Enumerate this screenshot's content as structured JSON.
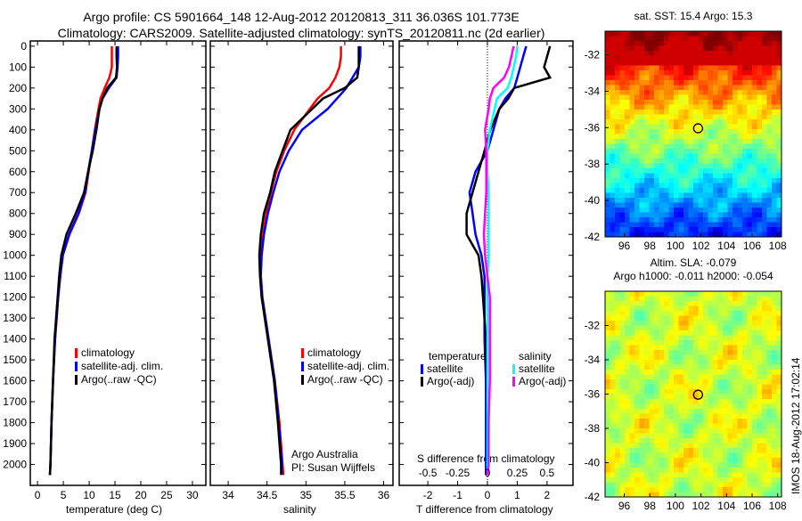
{
  "title": {
    "line1": "Argo profile: CS 5901664_148 12-Aug-2012 20120813_311 36.036S 101.773E",
    "line2": "Climatology: CARS2009. Satellite-adjusted climatology: synTS_20120811.nc (2d earlier)"
  },
  "colors": {
    "climatology": "#ff0000",
    "satellite": "#0000ff",
    "argo": "#000000",
    "sal_satellite": "#00ffff",
    "sal_argo": "#ff00ff"
  },
  "chart_data": [
    {
      "type": "line",
      "xlabel": "temperature (deg C)",
      "ylabel": "",
      "xticks": [
        0,
        5,
        10,
        15,
        20,
        25,
        30
      ],
      "yticks": [
        0,
        100,
        200,
        300,
        400,
        500,
        600,
        700,
        800,
        900,
        1000,
        1100,
        1200,
        1300,
        1400,
        1500,
        1600,
        1700,
        1800,
        1900,
        2000
      ],
      "xlim": [
        -1.4,
        32.6
      ],
      "ylim": [
        2100,
        -25
      ],
      "legend": [
        "climatology",
        "satellite-adj. clim.",
        "Argo(..raw -QC)"
      ],
      "legend_placement": "lower-right",
      "depth": [
        0,
        50,
        100,
        150,
        200,
        250,
        300,
        400,
        500,
        600,
        700,
        800,
        900,
        1000,
        1100,
        1200,
        1400,
        1600,
        1800,
        2000,
        2050
      ],
      "series": [
        {
          "name": "climatology",
          "values": [
            14.4,
            14.4,
            14.4,
            13.9,
            13.0,
            12.2,
            11.8,
            11.1,
            10.5,
            9.9,
            9.3,
            8.0,
            6.2,
            4.9,
            4.4,
            4.0,
            3.4,
            3.0,
            2.7,
            2.5,
            2.4
          ]
        },
        {
          "name": "satellite-adj. clim.",
          "values": [
            15.6,
            15.6,
            15.5,
            15.3,
            13.8,
            12.6,
            12.0,
            11.2,
            10.5,
            9.8,
            9.2,
            7.9,
            6.1,
            4.9,
            4.4,
            4.0,
            3.4,
            3.0,
            2.7,
            2.5,
            2.4
          ]
        },
        {
          "name": "Argo(..raw -QC)",
          "values": [
            15.3,
            15.3,
            15.4,
            15.2,
            13.5,
            12.6,
            12.0,
            11.4,
            10.7,
            9.8,
            9.0,
            7.4,
            5.6,
            4.6,
            4.2,
            3.9,
            3.3,
            3.0,
            2.7,
            2.5,
            2.4
          ]
        }
      ]
    },
    {
      "type": "line",
      "xlabel": "salinity",
      "xticks": [
        34,
        34.5,
        35,
        35.5,
        36
      ],
      "xlim": [
        33.77,
        36.12
      ],
      "ylim": [
        2100,
        -25
      ],
      "legend": [
        "climatology",
        "satellite-adj. clim.",
        "Argo(..raw -QC)"
      ],
      "legend_placement": "lower-right",
      "annotations": [
        "Argo Australia",
        "PI: Susan Wijffels"
      ],
      "depth": [
        0,
        50,
        100,
        150,
        200,
        250,
        300,
        400,
        500,
        600,
        700,
        800,
        900,
        1000,
        1100,
        1200,
        1400,
        1600,
        1800,
        2000,
        2050
      ],
      "series": [
        {
          "name": "climatology",
          "values": [
            35.45,
            35.45,
            35.43,
            35.38,
            35.3,
            35.15,
            35.05,
            34.85,
            34.72,
            34.62,
            34.55,
            34.49,
            34.45,
            34.42,
            34.42,
            34.44,
            34.52,
            34.6,
            34.66,
            34.7,
            34.71
          ]
        },
        {
          "name": "satellite-adj. clim.",
          "values": [
            35.7,
            35.7,
            35.68,
            35.6,
            35.52,
            35.4,
            35.28,
            34.95,
            34.78,
            34.66,
            34.58,
            34.51,
            34.46,
            34.43,
            34.42,
            34.44,
            34.52,
            34.6,
            34.65,
            34.69,
            34.69
          ]
        },
        {
          "name": "Argo(..raw -QC)",
          "values": [
            35.68,
            35.68,
            35.68,
            35.66,
            35.5,
            35.22,
            35.08,
            34.8,
            34.7,
            34.6,
            34.54,
            34.46,
            34.42,
            34.4,
            34.41,
            34.43,
            34.51,
            34.59,
            34.64,
            34.68,
            34.68
          ]
        }
      ]
    },
    {
      "type": "line",
      "xlabel": "T difference from climatology",
      "x2label": "S difference from climatology",
      "xticks": [
        -2,
        -1,
        0,
        1,
        2
      ],
      "x2ticks": [
        -0.5,
        -0.25,
        0,
        0.25,
        0.5
      ],
      "x2tick_labels": [
        "-0.5",
        "-0.25",
        "0",
        "0.25",
        "0.5"
      ],
      "xlim": [
        -2.96,
        2.87
      ],
      "ylim": [
        2100,
        -25
      ],
      "legend_titles": [
        "temperature",
        "salinity"
      ],
      "legend": [
        "satellite",
        "Argo(-adj)",
        "satellite",
        "Argo(-adj)"
      ],
      "legend_placement": "lower-center",
      "depth": [
        0,
        50,
        100,
        150,
        200,
        250,
        300,
        400,
        500,
        600,
        700,
        800,
        900,
        1000,
        1100,
        1200,
        1400,
        1600,
        1800,
        2000,
        2050
      ],
      "series": [
        {
          "name": "T satellite",
          "quantity": "T",
          "values": [
            1.3,
            1.2,
            1.1,
            1.0,
            0.9,
            0.6,
            0.4,
            0.2,
            0.0,
            -0.4,
            -0.6,
            -0.5,
            -0.4,
            -0.2,
            -0.1,
            -0.1,
            -0.1,
            -0.05,
            -0.05,
            -0.05,
            -0.05
          ]
        },
        {
          "name": "T Argo(-adj)",
          "quantity": "T",
          "values": [
            2.1,
            2.0,
            1.9,
            2.1,
            0.9,
            0.7,
            0.4,
            0.1,
            -0.1,
            -0.3,
            -0.5,
            -0.7,
            -0.7,
            -0.3,
            -0.2,
            -0.15,
            -0.05,
            -0.03,
            -0.02,
            -0.01,
            -0.01
          ]
        },
        {
          "name": "S satellite",
          "quantity": "S",
          "values": [
            0.25,
            0.24,
            0.22,
            0.2,
            0.17,
            0.08,
            0.06,
            0.02,
            0.0,
            0.0,
            0.01,
            0.01,
            0.01,
            0.01,
            0.0,
            0.0,
            0.0,
            0.0,
            0.0,
            0.0,
            0.0
          ]
        },
        {
          "name": "S Argo(-adj)",
          "quantity": "S",
          "values": [
            0.22,
            0.2,
            0.18,
            0.14,
            0.05,
            0.02,
            0.01,
            -0.02,
            -0.01,
            -0.01,
            -0.01,
            -0.02,
            -0.03,
            -0.02,
            0.0,
            0.02,
            0.02,
            0.02,
            0.01,
            0.01,
            0.0
          ]
        }
      ]
    },
    {
      "type": "heatmap",
      "title": "sat. SST: 15.4 Argo: 15.3",
      "xticks": [
        96,
        98,
        100,
        102,
        104,
        106,
        108
      ],
      "yticks": [
        -32,
        -34,
        -36,
        -38,
        -40,
        -42
      ],
      "xlim": [
        94.5,
        108.3
      ],
      "ylim": [
        -42,
        -30.7
      ],
      "marker": {
        "lon": 101.773,
        "lat": -36.036
      }
    },
    {
      "type": "heatmap",
      "title": "Altim. SLA: -0.079",
      "subtitle": "Argo h1000: -0.011 h2000: -0.054",
      "xticks": [
        96,
        98,
        100,
        102,
        104,
        106,
        108
      ],
      "yticks": [
        -32,
        -34,
        -36,
        -38,
        -40,
        -42
      ],
      "xlim": [
        94.5,
        108.3
      ],
      "ylim": [
        -42,
        -30.0
      ],
      "marker": {
        "lon": 101.773,
        "lat": -36.036
      }
    }
  ],
  "stamp": "IMOS 18-Aug-2012 17:02:14"
}
